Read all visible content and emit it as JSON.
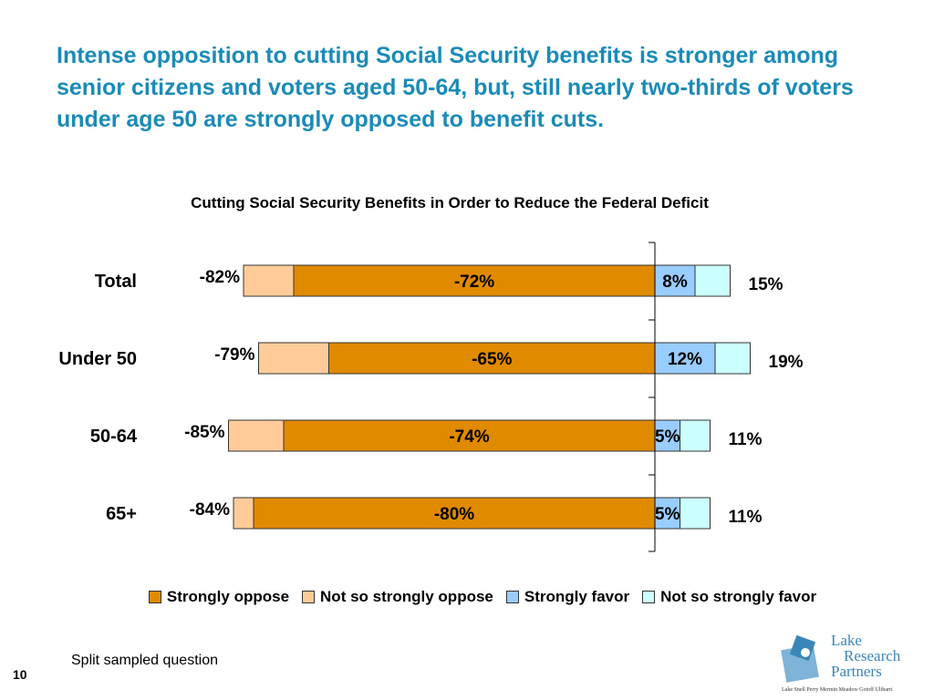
{
  "headline": "Intense opposition to cutting Social Security benefits is stronger among senior citizens and voters aged 50-64, but, still nearly two-thirds of voters under age 50 are strongly opposed to benefit cuts.",
  "chart_data": {
    "type": "bar",
    "orientation": "horizontal-diverging",
    "title": "Cutting Social Security Benefits in Order to Reduce the Federal Deficit",
    "categories": [
      "Total",
      "Under 50",
      "50-64",
      "65+"
    ],
    "series": [
      {
        "name": "Strongly oppose",
        "values": [
          -72,
          -65,
          -74,
          -80
        ],
        "color": "#e08a00"
      },
      {
        "name": "Not so strongly oppose",
        "values": [
          -10,
          -14,
          -11,
          -4
        ],
        "color": "#ffcc99"
      },
      {
        "name": "Strongly favor",
        "values": [
          8,
          12,
          5,
          5
        ],
        "color": "#99ccff"
      },
      {
        "name": "Not so strongly favor",
        "values": [
          7,
          7,
          6,
          6
        ],
        "color": "#ccffff"
      }
    ],
    "total_oppose": [
      -82,
      -79,
      -85,
      -84
    ],
    "total_favor": [
      15,
      19,
      11,
      11
    ],
    "strong_oppose_labels": [
      "-72%",
      "-65%",
      "-74%",
      "-80%"
    ],
    "strong_favor_labels": [
      "8%",
      "12%",
      "5%",
      "5%"
    ],
    "total_oppose_labels": [
      "-82%",
      "-79%",
      "-85%",
      "-84%"
    ],
    "total_favor_labels": [
      "15%",
      "19%",
      "11%",
      "11%"
    ],
    "legend_position": "bottom"
  },
  "legend": [
    {
      "label": "Strongly oppose",
      "color": "#e08a00"
    },
    {
      "label": "Not so strongly oppose",
      "color": "#ffcc99"
    },
    {
      "label": "Strongly favor",
      "color": "#99ccff"
    },
    {
      "label": "Not so strongly favor",
      "color": "#ccffff"
    }
  ],
  "footnote": "Split sampled question",
  "page_number": "10",
  "logo": {
    "line1": "Lake",
    "line2": "Research",
    "line3": "Partners",
    "names": "Lake Snell Perry Mermin Meadow Gotoff Ulibarri"
  }
}
